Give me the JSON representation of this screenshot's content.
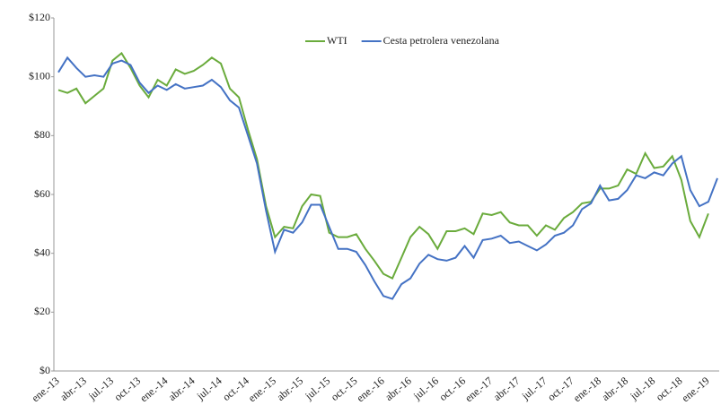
{
  "chart_data": {
    "type": "line",
    "categories": [
      "ene.-13",
      null,
      null,
      "abr.-13",
      null,
      null,
      "jul.-13",
      null,
      null,
      "oct.-13",
      null,
      null,
      "ene.-14",
      null,
      null,
      "abr.-14",
      null,
      null,
      "jul.-14",
      null,
      null,
      "oct.-14",
      null,
      null,
      "ene.-15",
      null,
      null,
      "abr.-15",
      null,
      null,
      "jul.-15",
      null,
      null,
      "oct.-15",
      null,
      null,
      "ene.-16",
      null,
      null,
      "abr.-16",
      null,
      null,
      "jul.-16",
      null,
      null,
      "oct.-16",
      null,
      null,
      "ene.-17",
      null,
      null,
      "abr.-17",
      null,
      null,
      "jul.-17",
      null,
      null,
      "oct.-17",
      null,
      null,
      "ene.-18",
      null,
      null,
      "abr.-18",
      null,
      null,
      "jul.-18",
      null,
      null,
      "oct.-18",
      null,
      null,
      "ene.-19",
      null
    ],
    "series": [
      {
        "name": "WTI",
        "color": "#6aab3c",
        "values": [
          95.5,
          94.5,
          96,
          91,
          93.5,
          96,
          105.5,
          108,
          103,
          97,
          93,
          99,
          97,
          102.5,
          101,
          102,
          104,
          106.5,
          104.5,
          96,
          93,
          82,
          72,
          56,
          45.5,
          49,
          48.5,
          56,
          60,
          59.5,
          47,
          45.5,
          45.5,
          46.5,
          41.5,
          37.5,
          33,
          31.5,
          38.5,
          45.5,
          49,
          46.5,
          41.5,
          47.5,
          47.5,
          48.5,
          46.5,
          53.5,
          53,
          54,
          50.5,
          49.5,
          49.5,
          46,
          49.5,
          48,
          52,
          54,
          57,
          57.5,
          62,
          62,
          63,
          68.5,
          67,
          74,
          69,
          69.5,
          73,
          65,
          51,
          45.5,
          53.5,
          null
        ]
      },
      {
        "name": "Cesta petrolera venezolana",
        "color": "#4472c4",
        "values": [
          101.5,
          106.5,
          103,
          100,
          100.5,
          100,
          104.5,
          105.5,
          104,
          98,
          94.5,
          97,
          95.5,
          97.5,
          96,
          96.5,
          97,
          99,
          96.5,
          92,
          89.5,
          80,
          70.5,
          54.5,
          40.5,
          48,
          47,
          50.5,
          56.5,
          56.5,
          49,
          41.5,
          41.5,
          40.5,
          36,
          30.5,
          25.5,
          24.5,
          29.5,
          31.5,
          36.5,
          39.5,
          38,
          37.5,
          38.5,
          42.5,
          38.5,
          44.5,
          45,
          46,
          43.5,
          44,
          42.5,
          41,
          43,
          46,
          47,
          49.5,
          55,
          57,
          63,
          58,
          58.5,
          61.5,
          66.5,
          65.5,
          67.5,
          66.5,
          70.5,
          73,
          61.5,
          56,
          57.5,
          65.5
        ]
      }
    ],
    "ylim": [
      0,
      120
    ],
    "yticks": [
      {
        "value": 0,
        "label": "$0"
      },
      {
        "value": 20,
        "label": "$20"
      },
      {
        "value": 40,
        "label": "$40"
      },
      {
        "value": 60,
        "label": "$60"
      },
      {
        "value": 80,
        "label": "$80"
      },
      {
        "value": 100,
        "label": "$100"
      },
      {
        "value": 120,
        "label": "$120"
      }
    ],
    "grid": false,
    "legend": "top"
  }
}
